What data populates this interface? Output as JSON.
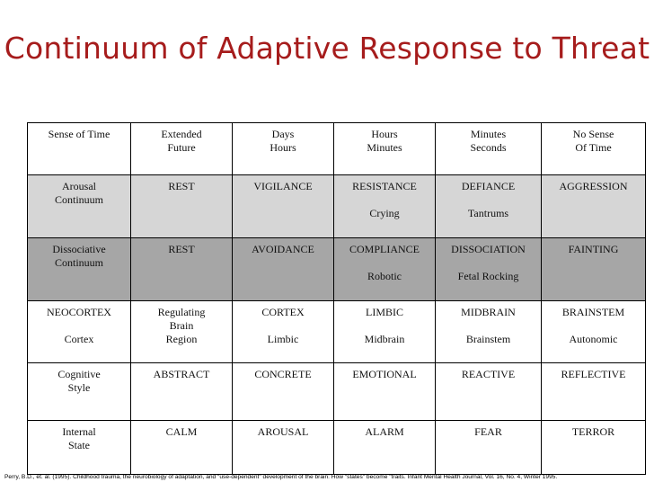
{
  "title": "Continuum of Adaptive Response to Threat",
  "rows": [
    {
      "header": "Sense of Time",
      "cells": [
        {
          "main": "Extended\nFuture",
          "sub": ""
        },
        {
          "main": "Days\nHours",
          "sub": ""
        },
        {
          "main": "Hours\nMinutes",
          "sub": ""
        },
        {
          "main": "Minutes\nSeconds",
          "sub": ""
        },
        {
          "main": "No Sense\nOf Time",
          "sub": ""
        }
      ]
    },
    {
      "header": "Arousal\nContinuum",
      "cells": [
        {
          "main": "REST",
          "sub": ""
        },
        {
          "main": "VIGILANCE",
          "sub": ""
        },
        {
          "main": "RESISTANCE",
          "sub": "Crying"
        },
        {
          "main": "DEFIANCE",
          "sub": "Tantrums"
        },
        {
          "main": "AGGRESSION",
          "sub": ""
        }
      ]
    },
    {
      "header": "Dissociative\nContinuum",
      "cells": [
        {
          "main": "REST",
          "sub": ""
        },
        {
          "main": "AVOIDANCE",
          "sub": ""
        },
        {
          "main": "COMPLIANCE",
          "sub": "Robotic"
        },
        {
          "main": "DISSOCIATION",
          "sub": "Fetal Rocking"
        },
        {
          "main": "FAINTING",
          "sub": ""
        }
      ]
    },
    {
      "header": "NEOCORTEX",
      "header_sub": "Cortex",
      "cells": [
        {
          "main": "Regulating\nBrain\nRegion",
          "sub": ""
        },
        {
          "main": "CORTEX",
          "sub": "Limbic"
        },
        {
          "main": "LIMBIC",
          "sub": "Midbrain"
        },
        {
          "main": "MIDBRAIN",
          "sub": "Brainstem"
        },
        {
          "main": "BRAINSTEM",
          "sub": "Autonomic"
        }
      ]
    },
    {
      "header": "Cognitive\nStyle",
      "cells": [
        {
          "main": "ABSTRACT",
          "sub": ""
        },
        {
          "main": "CONCRETE",
          "sub": ""
        },
        {
          "main": "EMOTIONAL",
          "sub": ""
        },
        {
          "main": "REACTIVE",
          "sub": ""
        },
        {
          "main": "REFLECTIVE",
          "sub": ""
        }
      ]
    },
    {
      "header": "Internal\nState",
      "cells": [
        {
          "main": "CALM",
          "sub": ""
        },
        {
          "main": "AROUSAL",
          "sub": ""
        },
        {
          "main": "ALARM",
          "sub": ""
        },
        {
          "main": "FEAR",
          "sub": ""
        },
        {
          "main": "TERROR",
          "sub": ""
        }
      ]
    }
  ],
  "citation": "Perry, B.D., et. al. (1995).  Childhood trauma, the neurobiology of adaptation, and \"use-dependent\" development of the brain:  How \"states\" become \"traits.  Infant Mental Health Journal, Vol. 16, No. 4, Winter 1995."
}
